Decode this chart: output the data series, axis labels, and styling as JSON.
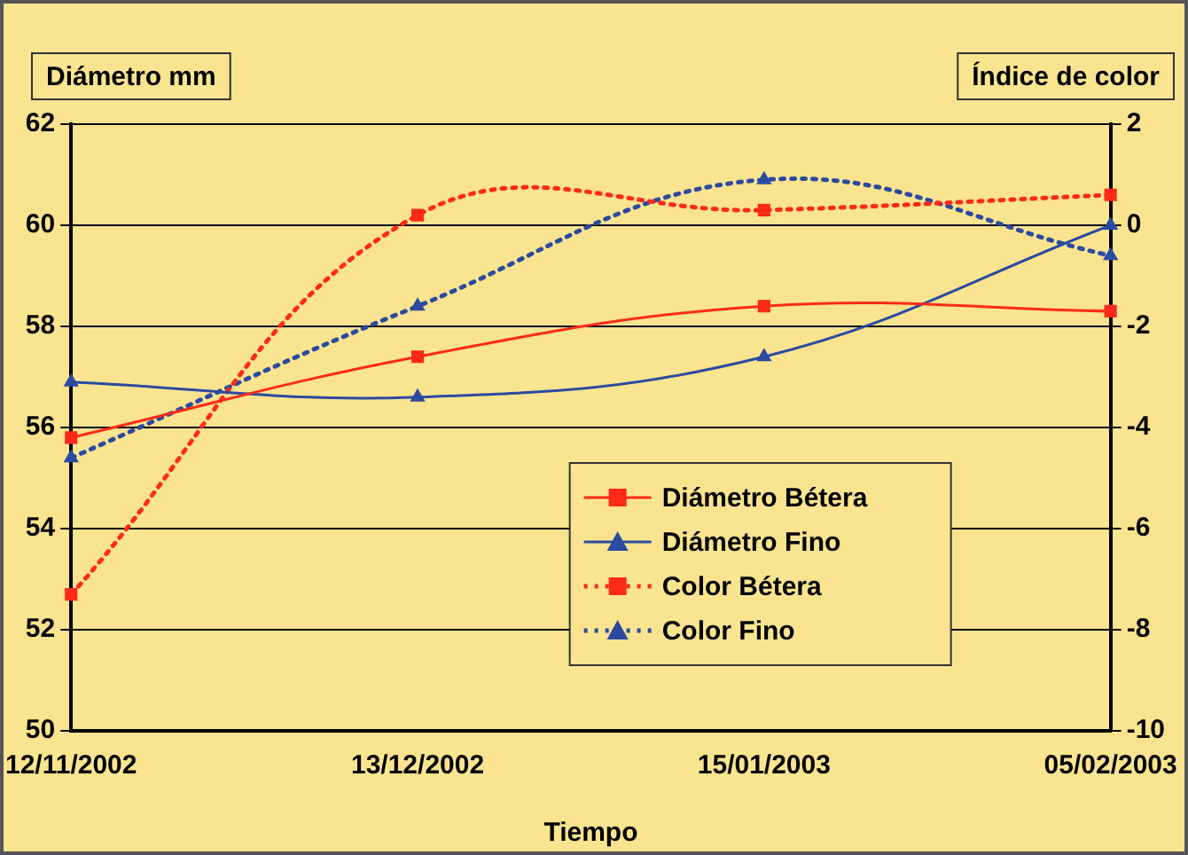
{
  "chart_data": {
    "type": "line",
    "xlabel": "Tiempo",
    "ylabel": "Diámetro mm",
    "y2label": "Índice de color",
    "categories": [
      "12/11/2002",
      "13/12/2002",
      "15/01/2003",
      "05/02/2003"
    ],
    "series": [
      {
        "name": "Diámetro Bétera",
        "color": "#ff2a1a",
        "values": [
          55.8,
          57.4,
          58.4,
          58.3
        ],
        "marker": "square",
        "line_style": "solid"
      },
      {
        "name": "Diámetro Fino",
        "color": "#2b4aa0",
        "values": [
          56.9,
          56.6,
          57.4,
          60.0
        ],
        "marker": "triangle",
        "line_style": "solid"
      },
      {
        "name": "Color Bétera",
        "color": "#ff2a1a",
        "values": [
          -7.3,
          0.2,
          0.3,
          0.6
        ],
        "axis": "y2",
        "marker": "square",
        "line_style": "dotted"
      },
      {
        "name": "Color Fino",
        "color": "#2b4aa0",
        "values": [
          -4.6,
          -1.6,
          0.9,
          -0.6
        ],
        "axis": "y2",
        "marker": "triangle",
        "line_style": "dotted"
      }
    ],
    "ylim": [
      50,
      62
    ],
    "yticks": [
      50,
      52,
      54,
      56,
      58,
      60,
      62
    ],
    "y2lim": [
      -10,
      2
    ],
    "y2ticks": [
      -10,
      -8,
      -6,
      -4,
      -2,
      0,
      2
    ],
    "grid": "y",
    "legend": "bottom right"
  }
}
